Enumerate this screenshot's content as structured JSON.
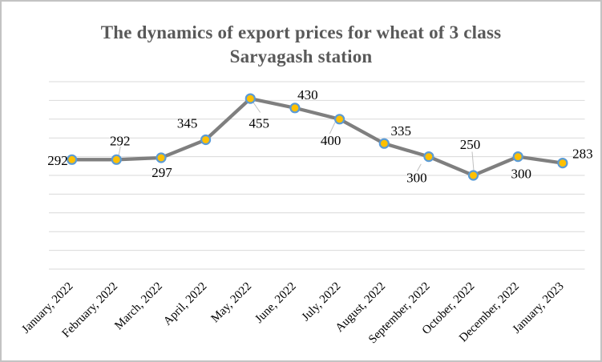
{
  "window": {
    "background": "#FFFFFF",
    "border_color": "#C3C3C3"
  },
  "chart_data": {
    "type": "line",
    "title_lines": [
      "The dynamics of export prices for wheat of 3 class",
      "Saryagash station"
    ],
    "categories": [
      "January, 2022",
      "February, 2022",
      "March, 2022",
      "April, 2022",
      "May, 2022",
      "June, 2022",
      "July, 2022",
      "August, 2022",
      "September, 2022",
      "October, 2022",
      "December, 2022",
      "January, 2023"
    ],
    "values": [
      292,
      292,
      297,
      345,
      455,
      430,
      400,
      335,
      300,
      250,
      300,
      283
    ],
    "data_labels": [
      "292",
      "292",
      "297",
      "345",
      "455",
      "430",
      "400",
      "335",
      "300",
      "250",
      "300",
      "283"
    ],
    "ylim": [
      0,
      500
    ],
    "grid_step": 50,
    "grid": true,
    "legend": "none",
    "y_axis_labels": "none",
    "x_label_rotation_deg": -45,
    "colors": {
      "line": "#7F7F7F",
      "marker_fill": "#FFC000",
      "marker_border": "#5B9BD5",
      "gridline": "#D9D9D9",
      "leader": "#BFBFBF",
      "data_label": "#000000",
      "axis_label": "#000000",
      "title": "#595959"
    }
  }
}
